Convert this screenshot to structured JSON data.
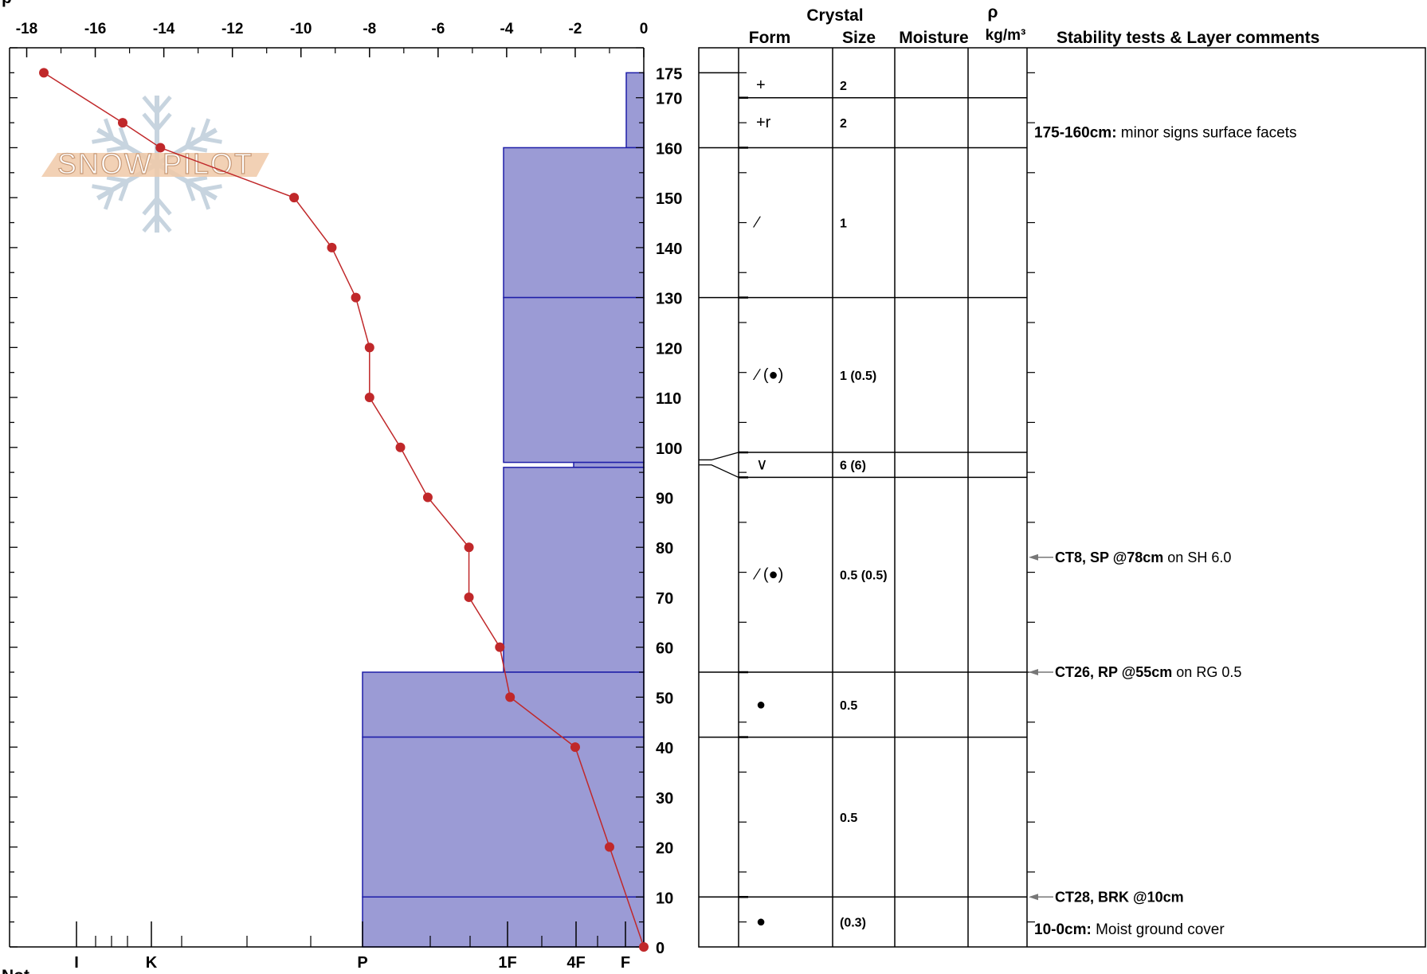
{
  "chart_data": {
    "type": "snow-profile",
    "temperature_axis": {
      "ticks": [
        "-18",
        "-16",
        "-14",
        "-12",
        "-10",
        "-8",
        "-6",
        "-4",
        "-2",
        "0"
      ],
      "range": [
        -18.5,
        0
      ]
    },
    "hardness_axis": {
      "labels": [
        "I",
        "K",
        "P",
        "1F",
        "4F",
        "F"
      ]
    },
    "depth_axis": {
      "ticks": [
        "175",
        "170",
        "160",
        "150",
        "140",
        "130",
        "120",
        "110",
        "100",
        "90",
        "80",
        "70",
        "60",
        "50",
        "40",
        "30",
        "20",
        "10",
        "0"
      ],
      "range": [
        0,
        180
      ]
    },
    "temperature_profile": [
      {
        "depth": 175,
        "temp": -17.5
      },
      {
        "depth": 165,
        "temp": -15.2
      },
      {
        "depth": 160,
        "temp": -14.1
      },
      {
        "depth": 150,
        "temp": -10.2
      },
      {
        "depth": 140,
        "temp": -9.1
      },
      {
        "depth": 130,
        "temp": -8.4
      },
      {
        "depth": 120,
        "temp": -8.0
      },
      {
        "depth": 110,
        "temp": -8.0
      },
      {
        "depth": 100,
        "temp": -7.1
      },
      {
        "depth": 90,
        "temp": -6.3
      },
      {
        "depth": 80,
        "temp": -5.1
      },
      {
        "depth": 70,
        "temp": -5.1
      },
      {
        "depth": 60,
        "temp": -4.2
      },
      {
        "depth": 50,
        "temp": -3.9
      },
      {
        "depth": 40,
        "temp": -2.0
      },
      {
        "depth": 20,
        "temp": -1.0
      },
      {
        "depth": 0,
        "temp": 0.0
      }
    ],
    "hardness_layers": [
      {
        "top": 175,
        "bottom": 160,
        "hardness": "F-"
      },
      {
        "top": 160,
        "bottom": 130,
        "hardness": "1F"
      },
      {
        "top": 130,
        "bottom": 97,
        "hardness": "1F"
      },
      {
        "top": 97,
        "bottom": 96,
        "hardness": "4F"
      },
      {
        "top": 96,
        "bottom": 55,
        "hardness": "1F"
      },
      {
        "top": 55,
        "bottom": 42,
        "hardness": "P"
      },
      {
        "top": 42,
        "bottom": 10,
        "hardness": "P"
      },
      {
        "top": 10,
        "bottom": 0,
        "hardness": "P"
      }
    ],
    "layers": [
      {
        "top": 175,
        "bottom": 170,
        "form": "+",
        "size": "2",
        "moisture": ""
      },
      {
        "top": 170,
        "bottom": 160,
        "form": "+r",
        "size": "2",
        "moisture": ""
      },
      {
        "top": 160,
        "bottom": 130,
        "form": "∕",
        "size": "1",
        "moisture": ""
      },
      {
        "top": 130,
        "bottom": 99,
        "form": "∕ (●)",
        "size": "1 (0.5)",
        "moisture": ""
      },
      {
        "top": 99,
        "bottom": 94,
        "form": "∨",
        "size": "6 (6)",
        "moisture": ""
      },
      {
        "top": 94,
        "bottom": 55,
        "form": "∕ (●)",
        "size": "0.5 (0.5)",
        "moisture": ""
      },
      {
        "top": 55,
        "bottom": 42,
        "form": "●",
        "size": "0.5",
        "moisture": ""
      },
      {
        "top": 42,
        "bottom": 10,
        "form": "",
        "size": "0.5",
        "moisture": ""
      },
      {
        "top": 10,
        "bottom": 0,
        "form": "●",
        "size": "(0.3)",
        "moisture": ""
      }
    ],
    "tests": [
      {
        "depth": 78,
        "label": "CT8, SP @78cm",
        "detail": " on SH 6.0"
      },
      {
        "depth": 55,
        "label": "CT26, RP @55cm",
        "detail": " on RG 0.5"
      },
      {
        "depth": 10,
        "label": "CT28, BRK @10cm",
        "detail": ""
      }
    ],
    "layer_comments": [
      {
        "depth": 163,
        "range": "175-160cm:",
        "text": " minor signs surface facets"
      },
      {
        "depth": 3.5,
        "range": "10-0cm:",
        "text": " Moist ground cover"
      }
    ]
  },
  "headers": {
    "crystal": "Crystal",
    "form": "Form",
    "size": "Size",
    "moisture": "Moisture",
    "rho": "ρ",
    "density_unit": "kg/m³",
    "comments": "Stability tests & Layer comments"
  },
  "watermark": "SNOW PILOT",
  "corner_label": "p",
  "footer_label": "Not",
  "colors": {
    "layer_fill": "#9b9bd5",
    "layer_stroke": "#1e1ea8",
    "temp_line": "#c0282a",
    "test_arrow": "#777777"
  }
}
